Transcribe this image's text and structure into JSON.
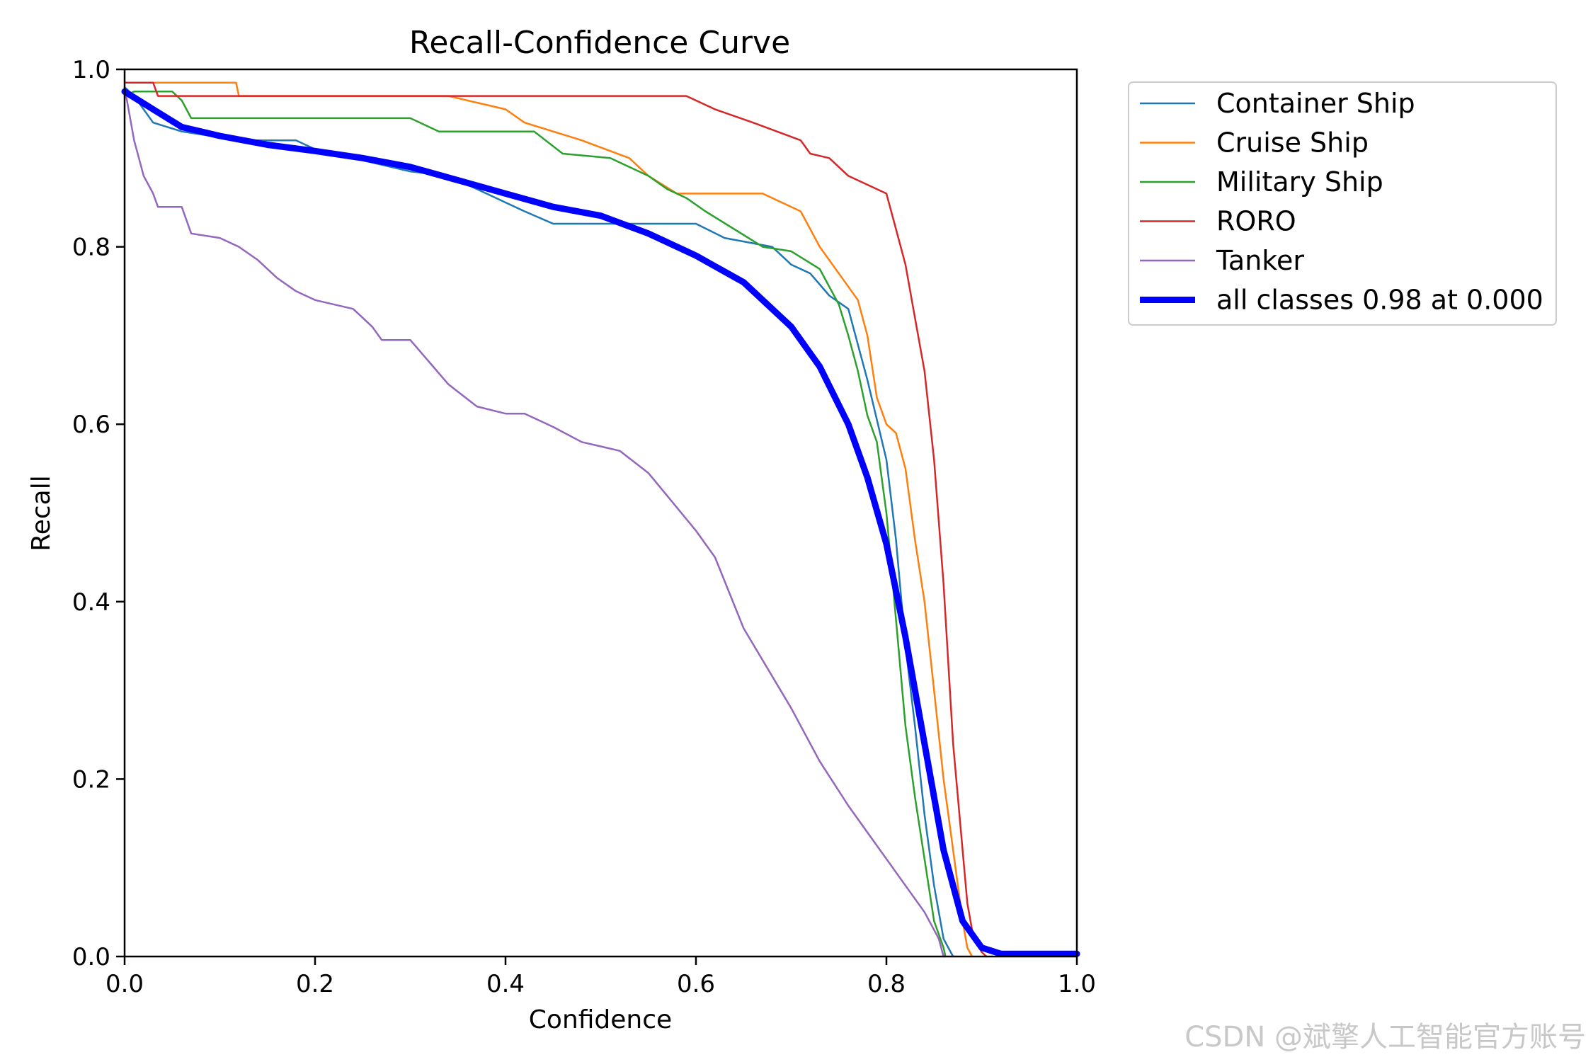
{
  "chart_data": {
    "type": "line",
    "title": "Recall-Confidence Curve",
    "xlabel": "Confidence",
    "ylabel": "Recall",
    "xlim": [
      0,
      1
    ],
    "ylim": [
      0,
      1
    ],
    "xticks": [
      "0.0",
      "0.2",
      "0.4",
      "0.6",
      "0.8",
      "1.0"
    ],
    "yticks": [
      "0.0",
      "0.2",
      "0.4",
      "0.6",
      "0.8",
      "1.0"
    ],
    "grid": false,
    "legend_position": "outside-right-top",
    "series": [
      {
        "name": "Container Ship",
        "color": "#1f77b4",
        "width": "thin",
        "x": [
          0.0,
          0.01,
          0.03,
          0.06,
          0.12,
          0.18,
          0.2,
          0.24,
          0.3,
          0.34,
          0.38,
          0.4,
          0.42,
          0.45,
          0.5,
          0.55,
          0.6,
          0.63,
          0.68,
          0.7,
          0.72,
          0.74,
          0.76,
          0.78,
          0.8,
          0.81,
          0.82,
          0.83,
          0.84,
          0.85,
          0.86,
          0.865,
          0.87
        ],
        "y": [
          0.98,
          0.97,
          0.94,
          0.93,
          0.92,
          0.92,
          0.91,
          0.9,
          0.885,
          0.88,
          0.86,
          0.85,
          0.84,
          0.826,
          0.826,
          0.826,
          0.826,
          0.81,
          0.8,
          0.78,
          0.77,
          0.745,
          0.73,
          0.65,
          0.56,
          0.47,
          0.35,
          0.26,
          0.16,
          0.08,
          0.02,
          0.01,
          0.0
        ]
      },
      {
        "name": "Cruise Ship",
        "color": "#ff7f0e",
        "width": "thin",
        "x": [
          0.0,
          0.02,
          0.117,
          0.12,
          0.3,
          0.34,
          0.4,
          0.42,
          0.48,
          0.53,
          0.55,
          0.58,
          0.6,
          0.67,
          0.71,
          0.73,
          0.75,
          0.77,
          0.78,
          0.79,
          0.8,
          0.81,
          0.82,
          0.83,
          0.84,
          0.85,
          0.86,
          0.87,
          0.88,
          0.885,
          0.89
        ],
        "y": [
          0.985,
          0.985,
          0.985,
          0.97,
          0.97,
          0.97,
          0.955,
          0.94,
          0.92,
          0.9,
          0.88,
          0.86,
          0.86,
          0.86,
          0.84,
          0.8,
          0.77,
          0.74,
          0.7,
          0.63,
          0.6,
          0.59,
          0.55,
          0.47,
          0.4,
          0.3,
          0.2,
          0.12,
          0.04,
          0.01,
          0.0
        ]
      },
      {
        "name": "Military Ship",
        "color": "#2ca02c",
        "width": "thin",
        "x": [
          0.0,
          0.01,
          0.05,
          0.06,
          0.07,
          0.1,
          0.2,
          0.3,
          0.33,
          0.36,
          0.43,
          0.46,
          0.51,
          0.55,
          0.57,
          0.59,
          0.61,
          0.64,
          0.67,
          0.7,
          0.73,
          0.75,
          0.76,
          0.77,
          0.78,
          0.79,
          0.8,
          0.81,
          0.82,
          0.83,
          0.84,
          0.85,
          0.86,
          0.862
        ],
        "y": [
          0.97,
          0.975,
          0.975,
          0.965,
          0.945,
          0.945,
          0.945,
          0.945,
          0.93,
          0.93,
          0.93,
          0.905,
          0.9,
          0.88,
          0.865,
          0.855,
          0.84,
          0.82,
          0.8,
          0.795,
          0.775,
          0.735,
          0.7,
          0.66,
          0.61,
          0.58,
          0.5,
          0.38,
          0.26,
          0.18,
          0.11,
          0.04,
          0.01,
          0.0
        ]
      },
      {
        "name": "RORO",
        "color": "#d62728",
        "width": "thin",
        "x": [
          0.0,
          0.03,
          0.035,
          0.35,
          0.59,
          0.62,
          0.66,
          0.71,
          0.72,
          0.74,
          0.76,
          0.8,
          0.81,
          0.82,
          0.83,
          0.84,
          0.85,
          0.86,
          0.87,
          0.88,
          0.885,
          0.89,
          0.895,
          0.9,
          0.905
        ],
        "y": [
          0.985,
          0.985,
          0.97,
          0.97,
          0.97,
          0.955,
          0.94,
          0.92,
          0.905,
          0.9,
          0.88,
          0.86,
          0.82,
          0.78,
          0.72,
          0.66,
          0.56,
          0.42,
          0.24,
          0.12,
          0.06,
          0.03,
          0.015,
          0.005,
          0.0
        ]
      },
      {
        "name": "Tanker",
        "color": "#9467bd",
        "width": "thin",
        "x": [
          0.0,
          0.005,
          0.01,
          0.015,
          0.02,
          0.03,
          0.035,
          0.06,
          0.07,
          0.1,
          0.12,
          0.14,
          0.16,
          0.18,
          0.2,
          0.24,
          0.26,
          0.27,
          0.3,
          0.32,
          0.34,
          0.37,
          0.4,
          0.42,
          0.45,
          0.48,
          0.5,
          0.52,
          0.55,
          0.6,
          0.62,
          0.65,
          0.7,
          0.73,
          0.76,
          0.78,
          0.8,
          0.82,
          0.84,
          0.855,
          0.86
        ],
        "y": [
          0.98,
          0.95,
          0.92,
          0.9,
          0.88,
          0.86,
          0.845,
          0.845,
          0.815,
          0.81,
          0.8,
          0.785,
          0.765,
          0.75,
          0.74,
          0.73,
          0.71,
          0.695,
          0.695,
          0.67,
          0.645,
          0.62,
          0.612,
          0.612,
          0.597,
          0.58,
          0.575,
          0.57,
          0.545,
          0.48,
          0.45,
          0.37,
          0.28,
          0.22,
          0.17,
          0.14,
          0.11,
          0.08,
          0.05,
          0.02,
          0.0
        ]
      },
      {
        "name": "all classes 0.98 at 0.000",
        "color": "#0000ff",
        "width": "thick",
        "x": [
          0.0,
          0.03,
          0.06,
          0.1,
          0.15,
          0.2,
          0.25,
          0.3,
          0.35,
          0.4,
          0.45,
          0.5,
          0.55,
          0.6,
          0.65,
          0.7,
          0.73,
          0.76,
          0.78,
          0.8,
          0.82,
          0.84,
          0.86,
          0.88,
          0.9,
          0.92,
          1.0
        ],
        "y": [
          0.975,
          0.955,
          0.935,
          0.925,
          0.915,
          0.908,
          0.9,
          0.89,
          0.875,
          0.86,
          0.845,
          0.835,
          0.815,
          0.79,
          0.76,
          0.71,
          0.665,
          0.6,
          0.54,
          0.465,
          0.36,
          0.24,
          0.12,
          0.04,
          0.01,
          0.003,
          0.003
        ]
      }
    ]
  },
  "watermark": "CSDN @斌擎人工智能官方账号"
}
